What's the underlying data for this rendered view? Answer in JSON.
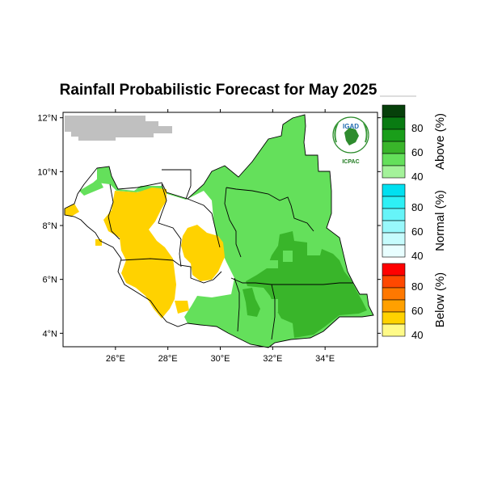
{
  "title": "Rainfall Probabilistic Forecast for May 2025",
  "map": {
    "lat_ticks": [
      "4°N",
      "6°N",
      "8°N",
      "10°N",
      "12°N"
    ],
    "lon_ticks": [
      "26°E",
      "28°E",
      "30°E",
      "32°E",
      "34°E"
    ],
    "lat_range": [
      3.5,
      12.2
    ],
    "lon_range": [
      24.0,
      36.0
    ]
  },
  "logo": {
    "top_text": "IGAD",
    "bottom_text": "ICPAC"
  },
  "legend": {
    "groups": [
      {
        "name": "Above (%)",
        "colors": [
          "#06400a",
          "#097b12",
          "#1a9e1a",
          "#39b52a",
          "#64e05b",
          "#a4f29a"
        ],
        "tick_labels": [
          "80",
          "60",
          "40"
        ]
      },
      {
        "name": "Normal (%)",
        "colors": [
          "#00e0f0",
          "#2ef0f5",
          "#66f4f8",
          "#98f8fb",
          "#c6fcfd",
          "#e8feff"
        ],
        "tick_labels": [
          "80",
          "60",
          "40"
        ]
      },
      {
        "name": "Below (%)",
        "colors": [
          "#ff0000",
          "#ff4800",
          "#ff7800",
          "#ffa000",
          "#ffd200",
          "#fffa88"
        ],
        "tick_labels": [
          "80",
          "60",
          "40"
        ]
      }
    ]
  },
  "colors": {
    "above_light": "#64e05b",
    "above_dark": "#39b52a",
    "below": "#ffd200",
    "no_data": "#c0c0c0"
  }
}
